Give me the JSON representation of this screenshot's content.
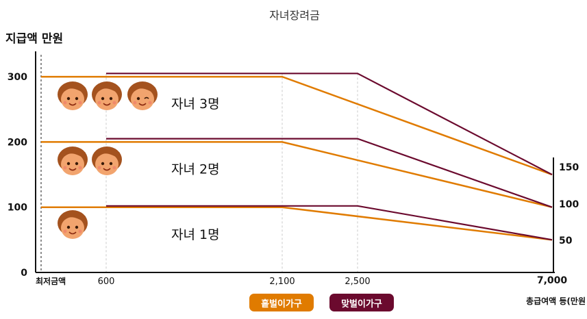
{
  "chart_data": {
    "type": "line",
    "title": "자녀장려금",
    "ylabel": "지급액 만원",
    "xlabel": "총급여액 등(만원",
    "ylim": [
      0,
      330
    ],
    "x_ticks": [
      {
        "value": 0,
        "label": "최저금액"
      },
      {
        "value": 600,
        "label": "600"
      },
      {
        "value": 2100,
        "label": "2,100"
      },
      {
        "value": 2500,
        "label": "2,500"
      },
      {
        "value": 7000,
        "label": "7,000"
      }
    ],
    "y_ticks": [
      0,
      100,
      200,
      300
    ],
    "end_labels": [
      "150",
      "100",
      "50"
    ],
    "group_labels": [
      {
        "label": "자녀 3명",
        "y": 260,
        "children": 3
      },
      {
        "label": "자녀 2명",
        "y": 160,
        "children": 2
      },
      {
        "label": "자녀 1명",
        "y": 60,
        "children": 1
      }
    ],
    "series": [
      {
        "name": "홑벌이가구",
        "color": "#e07b00",
        "lines": [
          [
            [
              0,
              300
            ],
            [
              2100,
              300
            ],
            [
              7000,
              150
            ]
          ],
          [
            [
              0,
              200
            ],
            [
              2100,
              200
            ],
            [
              7000,
              100
            ]
          ],
          [
            [
              0,
              100
            ],
            [
              2100,
              100
            ],
            [
              7000,
              50
            ]
          ]
        ]
      },
      {
        "name": "맞벌이가구",
        "color": "#6b0a2e",
        "lines": [
          [
            [
              600,
              305
            ],
            [
              2500,
              305
            ],
            [
              7000,
              150
            ]
          ],
          [
            [
              600,
              205
            ],
            [
              2500,
              205
            ],
            [
              7000,
              100
            ]
          ],
          [
            [
              600,
              102
            ],
            [
              2500,
              102
            ],
            [
              7000,
              50
            ]
          ]
        ]
      }
    ],
    "grid_x": [
      600,
      2100,
      2500
    ],
    "grid": false
  },
  "colors": {
    "single": "#e07b00",
    "dual": "#6b0a2e",
    "face": "#f2a46e",
    "hair": "#a4521e"
  }
}
